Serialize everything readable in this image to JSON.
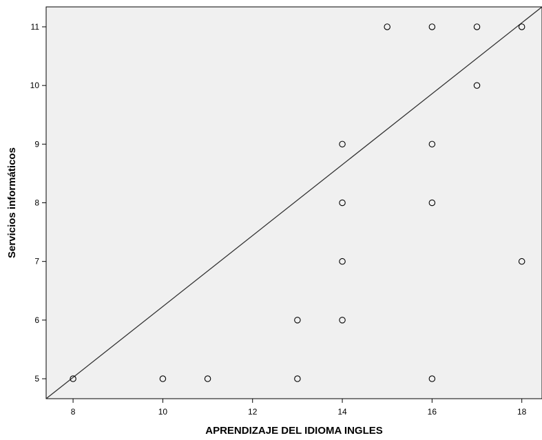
{
  "chart_data": {
    "type": "scatter",
    "title": "",
    "xlabel": "APRENDIZAJE DEL IDIOMA INGLES",
    "ylabel": "Servicios informáticos",
    "xlim": [
      7.4,
      18.45
    ],
    "ylim": [
      4.66,
      11.34
    ],
    "x_ticks": [
      8,
      10,
      12,
      14,
      16,
      18
    ],
    "y_ticks": [
      5,
      6,
      7,
      8,
      9,
      10,
      11
    ],
    "grid": false,
    "background_color": "#f0f0f0",
    "point_color": "#000000",
    "line_color": "#333333",
    "points": [
      {
        "x": 8,
        "y": 5
      },
      {
        "x": 10,
        "y": 5
      },
      {
        "x": 11,
        "y": 5
      },
      {
        "x": 13,
        "y": 5
      },
      {
        "x": 16,
        "y": 5
      },
      {
        "x": 13,
        "y": 6
      },
      {
        "x": 14,
        "y": 6
      },
      {
        "x": 14,
        "y": 7
      },
      {
        "x": 18,
        "y": 7
      },
      {
        "x": 14,
        "y": 8
      },
      {
        "x": 16,
        "y": 8
      },
      {
        "x": 14,
        "y": 9
      },
      {
        "x": 16,
        "y": 9
      },
      {
        "x": 17,
        "y": 10
      },
      {
        "x": 15,
        "y": 11
      },
      {
        "x": 16,
        "y": 11
      },
      {
        "x": 17,
        "y": 11
      },
      {
        "x": 18,
        "y": 11
      }
    ],
    "reference_line": {
      "x1": 7.4,
      "y1": 4.66,
      "x2": 18.45,
      "y2": 11.34
    }
  }
}
